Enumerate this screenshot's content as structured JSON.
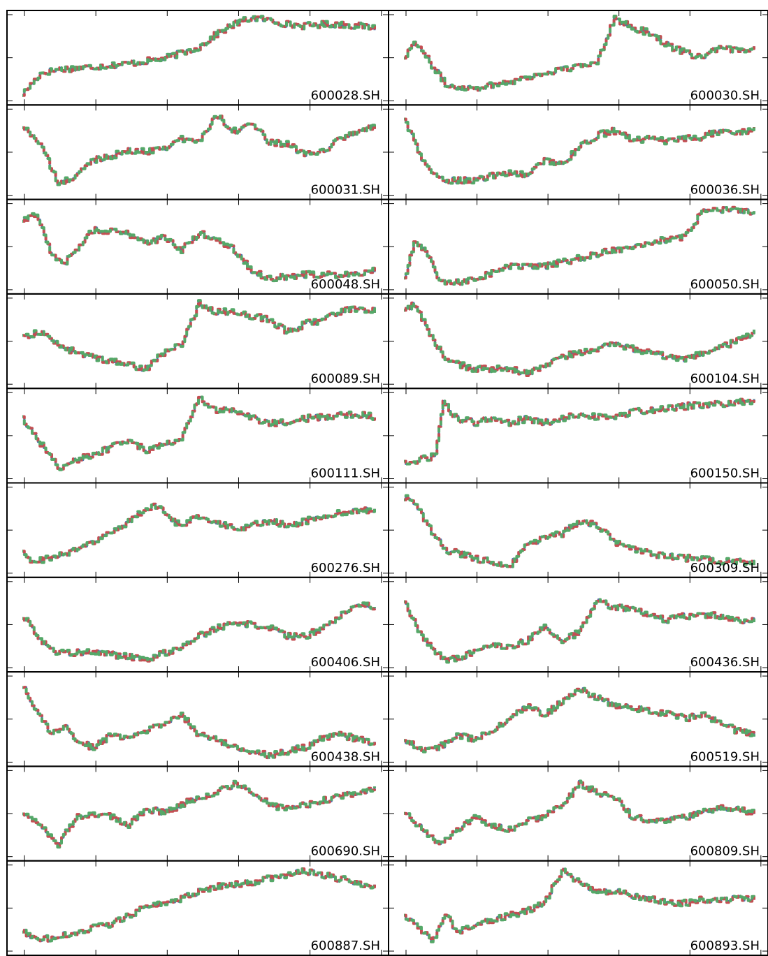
{
  "chart_data": {
    "type": "line",
    "layout": {
      "rows": 10,
      "cols": 2
    },
    "axes_visible_labels": false,
    "colors": {
      "series_a": "#4c72b0",
      "series_b": "#c44e52",
      "series_c": "#55a868",
      "frame": "#000000",
      "label_bg": "#ffffff"
    },
    "panels": [
      {
        "label": "600028.SH",
        "series": [
          {
            "x": [
              0,
              0.05,
              0.1,
              0.2,
              0.3,
              0.4,
              0.5,
              0.55,
              0.6,
              0.65,
              0.7,
              0.75,
              0.8,
              0.85,
              0.9,
              0.95,
              1.0
            ],
            "y": [
              0.05,
              0.3,
              0.35,
              0.38,
              0.42,
              0.48,
              0.62,
              0.78,
              0.9,
              0.98,
              0.95,
              0.9,
              0.88,
              0.9,
              0.9,
              0.88,
              0.86
            ]
          }
        ]
      },
      {
        "label": "600030.SH",
        "series": [
          {
            "x": [
              0,
              0.03,
              0.07,
              0.12,
              0.2,
              0.3,
              0.4,
              0.45,
              0.5,
              0.55,
              0.6,
              0.65,
              0.7,
              0.75,
              0.8,
              0.85,
              0.9,
              0.95,
              1.0
            ],
            "y": [
              0.5,
              0.7,
              0.45,
              0.15,
              0.12,
              0.2,
              0.3,
              0.35,
              0.38,
              0.45,
              0.98,
              0.85,
              0.8,
              0.65,
              0.55,
              0.5,
              0.6,
              0.58,
              0.62
            ]
          }
        ]
      },
      {
        "label": "600031.SH",
        "series": [
          {
            "x": [
              0,
              0.05,
              0.1,
              0.15,
              0.2,
              0.3,
              0.35,
              0.4,
              0.45,
              0.5,
              0.55,
              0.6,
              0.65,
              0.7,
              0.75,
              0.8,
              0.85,
              0.9,
              0.95,
              1.0
            ],
            "y": [
              0.8,
              0.6,
              0.1,
              0.2,
              0.4,
              0.5,
              0.5,
              0.55,
              0.65,
              0.62,
              0.95,
              0.75,
              0.85,
              0.6,
              0.6,
              0.45,
              0.5,
              0.65,
              0.75,
              0.8
            ]
          }
        ]
      },
      {
        "label": "600036.SH",
        "series": [
          {
            "x": [
              0,
              0.05,
              0.1,
              0.2,
              0.3,
              0.35,
              0.4,
              0.45,
              0.5,
              0.55,
              0.6,
              0.65,
              0.7,
              0.75,
              0.8,
              0.85,
              0.9,
              0.95,
              1.0
            ],
            "y": [
              0.9,
              0.4,
              0.15,
              0.15,
              0.25,
              0.2,
              0.4,
              0.35,
              0.55,
              0.7,
              0.75,
              0.65,
              0.65,
              0.62,
              0.65,
              0.68,
              0.75,
              0.72,
              0.78
            ]
          }
        ]
      },
      {
        "label": "600048.SH",
        "series": [
          {
            "x": [
              0,
              0.04,
              0.08,
              0.12,
              0.16,
              0.2,
              0.3,
              0.35,
              0.4,
              0.45,
              0.5,
              0.55,
              0.6,
              0.65,
              0.7,
              0.8,
              0.9,
              1.0
            ],
            "y": [
              0.8,
              0.9,
              0.4,
              0.3,
              0.5,
              0.7,
              0.65,
              0.55,
              0.6,
              0.45,
              0.65,
              0.6,
              0.45,
              0.2,
              0.1,
              0.15,
              0.15,
              0.2
            ]
          }
        ]
      },
      {
        "label": "600050.SH",
        "series": [
          {
            "x": [
              0,
              0.03,
              0.07,
              0.1,
              0.15,
              0.2,
              0.3,
              0.4,
              0.5,
              0.6,
              0.7,
              0.8,
              0.82,
              0.85,
              0.9,
              0.95,
              1.0
            ],
            "y": [
              0.1,
              0.55,
              0.4,
              0.05,
              0.05,
              0.1,
              0.25,
              0.25,
              0.35,
              0.45,
              0.55,
              0.6,
              0.7,
              0.95,
              0.95,
              0.93,
              0.9
            ]
          }
        ]
      },
      {
        "label": "600089.SH",
        "series": [
          {
            "x": [
              0,
              0.05,
              0.1,
              0.15,
              0.2,
              0.25,
              0.3,
              0.35,
              0.4,
              0.45,
              0.5,
              0.55,
              0.6,
              0.65,
              0.7,
              0.75,
              0.8,
              0.85,
              0.9,
              0.95,
              1.0
            ],
            "y": [
              0.55,
              0.6,
              0.45,
              0.35,
              0.3,
              0.25,
              0.2,
              0.15,
              0.35,
              0.45,
              0.95,
              0.85,
              0.85,
              0.8,
              0.75,
              0.6,
              0.7,
              0.75,
              0.85,
              0.9,
              0.85
            ]
          }
        ]
      },
      {
        "label": "600104.SH",
        "series": [
          {
            "x": [
              0,
              0.03,
              0.07,
              0.12,
              0.2,
              0.3,
              0.35,
              0.4,
              0.45,
              0.5,
              0.55,
              0.6,
              0.65,
              0.7,
              0.75,
              0.8,
              0.85,
              0.9,
              0.95,
              1.0
            ],
            "y": [
              0.85,
              0.95,
              0.6,
              0.25,
              0.15,
              0.15,
              0.1,
              0.2,
              0.3,
              0.35,
              0.4,
              0.45,
              0.4,
              0.35,
              0.3,
              0.25,
              0.35,
              0.4,
              0.5,
              0.6
            ]
          }
        ]
      },
      {
        "label": "600111.SH",
        "series": [
          {
            "x": [
              0,
              0.05,
              0.1,
              0.15,
              0.2,
              0.25,
              0.3,
              0.35,
              0.4,
              0.45,
              0.5,
              0.55,
              0.6,
              0.65,
              0.7,
              0.75,
              0.8,
              0.85,
              0.9,
              0.95,
              1.0
            ],
            "y": [
              0.7,
              0.4,
              0.1,
              0.2,
              0.25,
              0.35,
              0.45,
              0.3,
              0.4,
              0.45,
              0.95,
              0.8,
              0.8,
              0.7,
              0.65,
              0.65,
              0.7,
              0.72,
              0.75,
              0.75,
              0.72
            ]
          }
        ]
      },
      {
        "label": "600150.SH",
        "series": [
          {
            "x": [
              0,
              0.05,
              0.09,
              0.11,
              0.15,
              0.2,
              0.25,
              0.3,
              0.35,
              0.4,
              0.45,
              0.5,
              0.55,
              0.6,
              0.65,
              0.7,
              0.75,
              0.8,
              0.85,
              0.9,
              0.95,
              1.0
            ],
            "y": [
              0.15,
              0.2,
              0.25,
              0.9,
              0.7,
              0.65,
              0.7,
              0.65,
              0.7,
              0.65,
              0.7,
              0.75,
              0.72,
              0.7,
              0.78,
              0.8,
              0.82,
              0.85,
              0.87,
              0.88,
              0.9,
              0.9
            ]
          }
        ]
      },
      {
        "label": "600276.SH",
        "series": [
          {
            "x": [
              0,
              0.03,
              0.07,
              0.12,
              0.18,
              0.25,
              0.3,
              0.35,
              0.38,
              0.42,
              0.45,
              0.5,
              0.55,
              0.6,
              0.65,
              0.7,
              0.75,
              0.8,
              0.85,
              0.9,
              0.95,
              1.0
            ],
            "y": [
              0.2,
              0.1,
              0.15,
              0.2,
              0.3,
              0.45,
              0.6,
              0.75,
              0.8,
              0.6,
              0.55,
              0.65,
              0.6,
              0.5,
              0.55,
              0.6,
              0.55,
              0.6,
              0.65,
              0.7,
              0.72,
              0.75
            ]
          }
        ]
      },
      {
        "label": "600309.SH",
        "series": [
          {
            "x": [
              0,
              0.04,
              0.08,
              0.12,
              0.16,
              0.2,
              0.25,
              0.3,
              0.35,
              0.4,
              0.45,
              0.5,
              0.55,
              0.6,
              0.7,
              0.8,
              0.9,
              1.0
            ],
            "y": [
              0.9,
              0.75,
              0.45,
              0.25,
              0.2,
              0.15,
              0.1,
              0.05,
              0.3,
              0.4,
              0.45,
              0.6,
              0.55,
              0.35,
              0.2,
              0.15,
              0.12,
              0.1
            ]
          }
        ]
      },
      {
        "label": "600406.SH",
        "series": [
          {
            "x": [
              0,
              0.05,
              0.1,
              0.2,
              0.3,
              0.35,
              0.4,
              0.45,
              0.5,
              0.55,
              0.6,
              0.65,
              0.7,
              0.75,
              0.8,
              0.85,
              0.9,
              0.95,
              1.0
            ],
            "y": [
              0.6,
              0.3,
              0.15,
              0.15,
              0.1,
              0.05,
              0.15,
              0.2,
              0.35,
              0.45,
              0.5,
              0.5,
              0.45,
              0.35,
              0.35,
              0.45,
              0.6,
              0.75,
              0.7
            ]
          }
        ]
      },
      {
        "label": "600436.SH",
        "series": [
          {
            "x": [
              0,
              0.04,
              0.08,
              0.12,
              0.2,
              0.25,
              0.3,
              0.35,
              0.4,
              0.45,
              0.5,
              0.55,
              0.6,
              0.65,
              0.7,
              0.75,
              0.8,
              0.85,
              0.9,
              0.95,
              1.0
            ],
            "y": [
              0.8,
              0.4,
              0.2,
              0.05,
              0.15,
              0.25,
              0.2,
              0.3,
              0.45,
              0.3,
              0.4,
              0.8,
              0.7,
              0.7,
              0.6,
              0.55,
              0.6,
              0.6,
              0.6,
              0.55,
              0.55
            ]
          }
        ]
      },
      {
        "label": "600438.SH",
        "series": [
          {
            "x": [
              0,
              0.04,
              0.08,
              0.12,
              0.16,
              0.2,
              0.25,
              0.3,
              0.35,
              0.4,
              0.45,
              0.5,
              0.55,
              0.6,
              0.65,
              0.7,
              0.75,
              0.8,
              0.85,
              0.9,
              0.95,
              1.0
            ],
            "y": [
              0.9,
              0.6,
              0.3,
              0.4,
              0.2,
              0.15,
              0.3,
              0.25,
              0.35,
              0.45,
              0.55,
              0.3,
              0.25,
              0.15,
              0.1,
              0.05,
              0.1,
              0.15,
              0.25,
              0.3,
              0.25,
              0.2
            ]
          }
        ]
      },
      {
        "label": "600519.SH",
        "series": [
          {
            "x": [
              0,
              0.05,
              0.1,
              0.15,
              0.2,
              0.25,
              0.3,
              0.35,
              0.4,
              0.45,
              0.5,
              0.55,
              0.6,
              0.65,
              0.7,
              0.75,
              0.8,
              0.85,
              0.9,
              0.95,
              1.0
            ],
            "y": [
              0.25,
              0.1,
              0.15,
              0.3,
              0.25,
              0.35,
              0.5,
              0.65,
              0.55,
              0.7,
              0.85,
              0.75,
              0.65,
              0.62,
              0.6,
              0.55,
              0.5,
              0.55,
              0.45,
              0.35,
              0.3
            ]
          }
        ]
      },
      {
        "label": "600690.SH",
        "series": [
          {
            "x": [
              0,
              0.05,
              0.1,
              0.15,
              0.2,
              0.25,
              0.3,
              0.35,
              0.4,
              0.45,
              0.5,
              0.55,
              0.6,
              0.65,
              0.7,
              0.75,
              0.8,
              0.85,
              0.9,
              0.95,
              1.0
            ],
            "y": [
              0.5,
              0.35,
              0.1,
              0.45,
              0.5,
              0.45,
              0.35,
              0.55,
              0.5,
              0.6,
              0.7,
              0.75,
              0.85,
              0.75,
              0.6,
              0.55,
              0.6,
              0.65,
              0.7,
              0.75,
              0.8
            ]
          }
        ]
      },
      {
        "label": "600809.SH",
        "series": [
          {
            "x": [
              0,
              0.05,
              0.1,
              0.15,
              0.2,
              0.25,
              0.3,
              0.35,
              0.4,
              0.45,
              0.5,
              0.55,
              0.6,
              0.65,
              0.7,
              0.75,
              0.8,
              0.85,
              0.9,
              0.95,
              1.0
            ],
            "y": [
              0.5,
              0.3,
              0.1,
              0.3,
              0.45,
              0.35,
              0.3,
              0.4,
              0.45,
              0.6,
              0.85,
              0.75,
              0.7,
              0.45,
              0.4,
              0.4,
              0.45,
              0.5,
              0.55,
              0.55,
              0.5
            ]
          }
        ]
      },
      {
        "label": "600887.SH",
        "series": [
          {
            "x": [
              0,
              0.05,
              0.1,
              0.15,
              0.2,
              0.25,
              0.3,
              0.35,
              0.4,
              0.45,
              0.5,
              0.55,
              0.6,
              0.65,
              0.7,
              0.75,
              0.8,
              0.85,
              0.9,
              0.95,
              1.0
            ],
            "y": [
              0.2,
              0.1,
              0.15,
              0.2,
              0.25,
              0.3,
              0.4,
              0.5,
              0.55,
              0.6,
              0.7,
              0.75,
              0.78,
              0.8,
              0.85,
              0.88,
              0.95,
              0.9,
              0.85,
              0.8,
              0.75
            ]
          }
        ]
      },
      {
        "label": "600893.SH",
        "series": [
          {
            "x": [
              0,
              0.05,
              0.08,
              0.12,
              0.15,
              0.2,
              0.25,
              0.3,
              0.35,
              0.4,
              0.45,
              0.5,
              0.55,
              0.6,
              0.65,
              0.7,
              0.75,
              0.8,
              0.85,
              0.9,
              0.95,
              1.0
            ],
            "y": [
              0.4,
              0.2,
              0.1,
              0.4,
              0.2,
              0.3,
              0.35,
              0.4,
              0.45,
              0.55,
              0.95,
              0.8,
              0.7,
              0.7,
              0.65,
              0.6,
              0.55,
              0.55,
              0.6,
              0.6,
              0.6,
              0.6
            ]
          }
        ]
      }
    ]
  }
}
